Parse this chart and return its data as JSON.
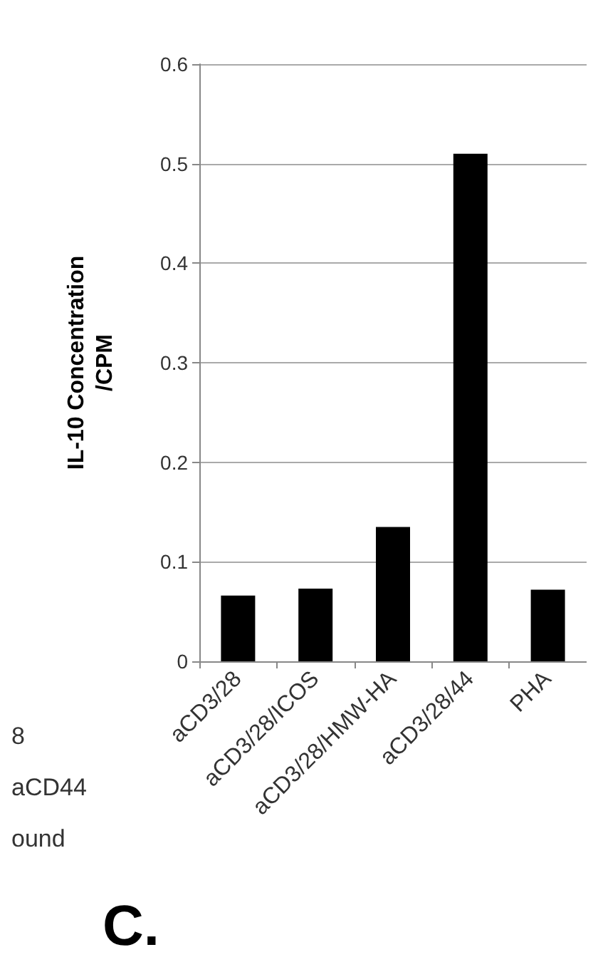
{
  "chart_data": {
    "type": "bar",
    "ylabel": "IL-10 Concentration\n/CPM",
    "categories": [
      "aCD3/28",
      "aCD3/28/ICOS",
      "aCD3/28/HMW-HA",
      "aCD3/28/44",
      "PHA"
    ],
    "values": [
      0.066,
      0.073,
      0.135,
      0.51,
      0.072
    ],
    "color": "#000000",
    "ylim": [
      0,
      0.6
    ],
    "yticks": [
      0,
      0.1,
      0.2,
      0.3,
      0.4,
      0.5,
      0.6
    ],
    "grid": "y",
    "annotations": [
      "8",
      "aCD44",
      "ound",
      "C."
    ]
  }
}
